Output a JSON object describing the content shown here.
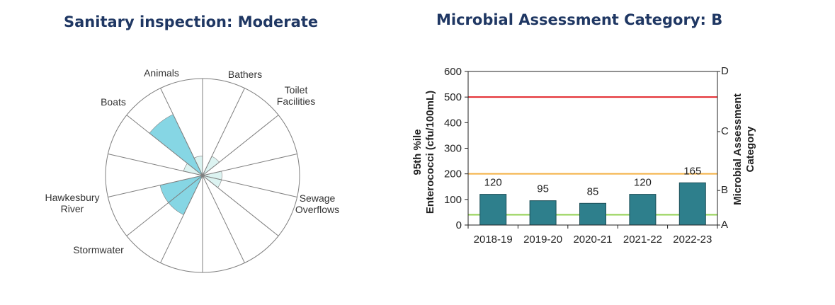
{
  "left_title": "Sanitary inspection: Moderate",
  "right_title": "Microbial Assessment Category: B",
  "chart_data": [
    {
      "type": "polar",
      "title": "Sanitary inspection: Moderate",
      "sectors": [
        {
          "label": "Bathers",
          "value": 0.0
        },
        {
          "label": "Toilet Facilities",
          "value": 0.22
        },
        {
          "label": "",
          "value": 0.0
        },
        {
          "label": "",
          "value": 0.2
        },
        {
          "label": "Sewage Overflows",
          "value": 0.2
        },
        {
          "label": "",
          "value": 0.0
        },
        {
          "label": "",
          "value": 0.0
        },
        {
          "label": "",
          "value": 0.0
        },
        {
          "label": "Stormwater",
          "value": 0.45
        },
        {
          "label": "Hawkesbury River",
          "value": 0.45
        },
        {
          "label": "",
          "value": 0.0
        },
        {
          "label": "Boats",
          "value": 0.2
        },
        {
          "label": "Animals",
          "value": 0.7
        },
        {
          "label": "",
          "value": 0.2
        }
      ],
      "label_text": {
        "animals": "Animals",
        "bathers": "Bathers",
        "toilet_1": "Toilet",
        "toilet_2": "Facilities",
        "boats": "Boats",
        "sewage_1": "Sewage",
        "sewage_2": "Overflows",
        "hawkesbury_1": "Hawkesbury",
        "hawkesbury_2": "River",
        "stormwater": "Stormwater"
      },
      "fill_color": "#86d6e4",
      "light_fill_color": "#dcf3f1"
    },
    {
      "type": "bar",
      "title": "Microbial Assessment Category: B",
      "categories": [
        "2018-19",
        "2019-20",
        "2020-21",
        "2021-22",
        "2022-23"
      ],
      "values": [
        120,
        95,
        85,
        120,
        165
      ],
      "data_labels": [
        "120",
        "95",
        "85",
        "120",
        "165"
      ],
      "ylabel_line1": "95th %ile",
      "ylabel_line2": "Enterococci (cfu/100mL)",
      "ylim": [
        0,
        600
      ],
      "yticks": [
        0,
        100,
        200,
        300,
        400,
        500,
        600
      ],
      "ytick_labels": [
        "0",
        "100",
        "200",
        "300",
        "400",
        "500",
        "600"
      ],
      "y2label_line1": "Microbial Assessment",
      "y2label_line2": "Category",
      "categories_right": [
        {
          "label": "A",
          "value": 0
        },
        {
          "label": "B",
          "value": 135
        },
        {
          "label": "C",
          "value": 365
        },
        {
          "label": "D",
          "value": 600
        }
      ],
      "thresholds": [
        {
          "value": 40,
          "color": "#92d050"
        },
        {
          "value": 200,
          "color": "#f4b042"
        },
        {
          "value": 500,
          "color": "#e3262c"
        }
      ],
      "bar_color": "#2e7f8c",
      "grid": false
    }
  ]
}
